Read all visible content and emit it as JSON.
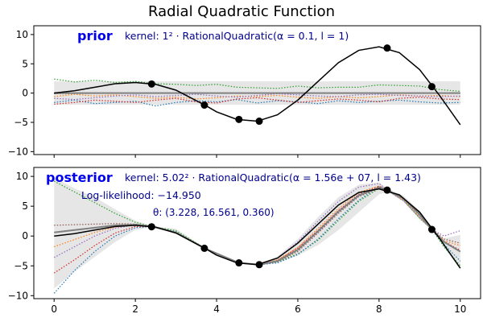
{
  "figure_title": "Radial Quadratic Function",
  "chart_data": [
    {
      "type": "line",
      "panel_label": "prior",
      "panel_label_color": "#0000ee",
      "kernel_label": "kernel: 1² · RationalQuadratic(α = 0.1, l = 1)",
      "text_color": "#00008b",
      "xlim": [
        -0.5,
        10.5
      ],
      "ylim": [
        -10.5,
        11.5
      ],
      "xticks": [
        0,
        2,
        4,
        6,
        8,
        10
      ],
      "yticks": [
        -10,
        -5,
        0,
        5,
        10
      ],
      "show_xtick_labels": false,
      "grid": false,
      "band": {
        "color": "#e6e6e6",
        "x": [
          0,
          10
        ],
        "lower": [
          -2,
          -2
        ],
        "upper": [
          2,
          2
        ]
      },
      "mean": {
        "color": "#808080",
        "x": [
          0,
          10
        ],
        "y": [
          0,
          0
        ]
      },
      "true_function": {
        "color": "#000000",
        "x": [
          0,
          0.5,
          1,
          1.5,
          2,
          2.5,
          3,
          3.5,
          3.7,
          4,
          4.5,
          5,
          5.5,
          6,
          6.5,
          7,
          7.5,
          8,
          8.5,
          9,
          9.5,
          10
        ],
        "y": [
          0,
          0.4,
          1.0,
          1.6,
          1.8,
          1.5,
          0.5,
          -1.3,
          -2.0,
          -3.2,
          -4.5,
          -4.8,
          -3.7,
          -1.2,
          2.0,
          5.2,
          7.3,
          7.9,
          6.9,
          4.0,
          -0.5,
          -5.4
        ]
      },
      "samples": [
        {
          "color": "#2ca02c",
          "x": [
            0,
            0.5,
            1,
            1.5,
            2,
            2.5,
            3,
            3.5,
            4,
            4.5,
            5,
            5.5,
            6,
            6.5,
            7,
            7.5,
            8,
            8.5,
            9,
            9.5,
            10
          ],
          "y": [
            2.4,
            1.9,
            2.2,
            1.8,
            2.0,
            1.6,
            1.5,
            1.3,
            1.5,
            1.0,
            0.9,
            0.8,
            1.2,
            0.9,
            1.0,
            1.0,
            1.4,
            1.3,
            1.2,
            0.6,
            0.3
          ]
        },
        {
          "color": "#ff7f0e",
          "x": [
            0,
            0.5,
            1,
            1.5,
            2,
            2.5,
            3,
            3.5,
            4,
            4.5,
            5,
            5.5,
            6,
            6.5,
            7,
            7.5,
            8,
            8.5,
            9,
            9.5,
            10
          ],
          "y": [
            -0.6,
            -0.2,
            -0.5,
            -0.3,
            -0.6,
            -0.9,
            -0.7,
            -1.0,
            -0.8,
            -0.5,
            -0.6,
            -0.4,
            -0.7,
            -0.9,
            -0.6,
            -0.8,
            -0.6,
            -0.3,
            -0.5,
            -0.4,
            -0.6
          ]
        },
        {
          "color": "#1f77b4",
          "x": [
            0,
            0.5,
            1,
            1.5,
            2,
            2.5,
            3,
            3.5,
            4,
            4.5,
            5,
            5.5,
            6,
            6.5,
            7,
            7.5,
            8,
            8.5,
            9,
            9.5,
            10
          ],
          "y": [
            -1.6,
            -1.2,
            -1.8,
            -1.6,
            -1.4,
            -2.2,
            -1.6,
            -1.3,
            -1.5,
            -1.1,
            -1.7,
            -1.3,
            -1.5,
            -1.8,
            -1.3,
            -1.6,
            -1.4,
            -1.2,
            -1.5,
            -1.7,
            -1.6
          ]
        },
        {
          "color": "#d62728",
          "x": [
            0,
            0.5,
            1,
            1.5,
            2,
            2.5,
            3,
            3.5,
            4,
            4.5,
            5,
            5.5,
            6,
            6.5,
            7,
            7.5,
            8,
            8.5,
            9,
            9.5,
            10
          ],
          "y": [
            -1.9,
            -1.6,
            -1.2,
            -1.4,
            -1.6,
            -1.2,
            -0.9,
            -1.5,
            -1.7,
            -1.0,
            -0.8,
            -1.2,
            -1.6,
            -1.3,
            -1.0,
            -1.2,
            -1.5,
            -0.9,
            -0.7,
            -1.0,
            -1.1
          ]
        },
        {
          "color": "#9467bd",
          "x": [
            0,
            0.5,
            1,
            1.5,
            2,
            2.5,
            3,
            3.5,
            4,
            4.5,
            5,
            5.5,
            6,
            6.5,
            7,
            7.5,
            8,
            8.5,
            9,
            9.5,
            10
          ],
          "y": [
            -0.9,
            -1.1,
            -0.8,
            -0.5,
            -0.3,
            -0.6,
            -0.4,
            -0.2,
            -0.5,
            -0.7,
            -0.4,
            -0.1,
            -0.3,
            -0.5,
            -0.6,
            -0.3,
            -0.2,
            -0.4,
            -0.5,
            -0.6,
            -0.5
          ]
        },
        {
          "color": "#8c564b",
          "x": [
            0,
            1,
            2,
            3,
            4,
            5,
            6,
            7,
            8,
            9,
            10
          ],
          "y": [
            -0.1,
            -0.05,
            0.0,
            0.05,
            0.0,
            -0.05,
            0.05,
            0.0,
            -0.02,
            0.02,
            0.0
          ]
        }
      ],
      "observations": {
        "x": [
          2.4,
          3.7,
          4.55,
          5.05,
          8.2,
          9.3
        ],
        "y": [
          1.55,
          -2.05,
          -4.5,
          -4.8,
          7.7,
          1.1
        ],
        "color": "#000000"
      }
    },
    {
      "type": "line",
      "panel_label": "posterior",
      "panel_label_color": "#0000ee",
      "kernel_label": "kernel: 5.02² · RationalQuadratic(α = 1.56e + 07, l = 1.43)",
      "loglik_label": "Log-likelihood: −14.950",
      "theta_label": "θ: (3.228, 16.561, 0.360)",
      "text_color": "#00008b",
      "xlim": [
        -0.5,
        10.5
      ],
      "ylim": [
        -10.5,
        11.5
      ],
      "xticks": [
        0,
        2,
        4,
        6,
        8,
        10
      ],
      "yticks": [
        -10,
        -5,
        0,
        5,
        10
      ],
      "show_xtick_labels": true,
      "grid": false,
      "band": {
        "color": "#e6e6e6",
        "x": [
          0,
          0.5,
          1,
          1.5,
          2,
          2.4,
          3,
          3.7,
          4.55,
          5.05,
          5.5,
          6,
          6.5,
          7,
          7.5,
          8,
          8.2,
          8.6,
          9,
          9.3,
          9.6,
          10
        ],
        "lower": [
          -8.8,
          -6.0,
          -3.5,
          -1.0,
          1.0,
          1.5,
          0.7,
          -2.2,
          -4.6,
          -4.9,
          -4.5,
          -3.3,
          -1.5,
          1.0,
          4.0,
          7.0,
          7.4,
          5.8,
          2.8,
          1.0,
          -2.0,
          -5.5
        ],
        "upper": [
          9.8,
          8.0,
          6.5,
          4.5,
          2.6,
          1.7,
          1.2,
          -1.9,
          -4.4,
          -4.7,
          -3.4,
          -0.5,
          3.2,
          6.5,
          8.6,
          9.0,
          8.0,
          6.8,
          4.2,
          1.3,
          -0.4,
          0.2
        ]
      },
      "mean": {
        "color": "#808080",
        "x": [
          0,
          0.5,
          1,
          1.5,
          2,
          2.4,
          3,
          3.7,
          4.55,
          5.05,
          5.5,
          6,
          6.5,
          7,
          7.5,
          8,
          8.2,
          8.6,
          9,
          9.3,
          9.6,
          10
        ],
        "y": [
          0.6,
          1.0,
          1.4,
          1.8,
          1.9,
          1.6,
          0.6,
          -2.05,
          -4.5,
          -4.8,
          -4.2,
          -2.3,
          0.8,
          4.1,
          6.8,
          8.1,
          7.7,
          6.3,
          3.6,
          1.1,
          -1.0,
          -2.6
        ]
      },
      "true_function": {
        "color": "#000000",
        "x": [
          0,
          0.5,
          1,
          1.5,
          2,
          2.5,
          3,
          3.5,
          3.7,
          4,
          4.5,
          5,
          5.5,
          6,
          6.5,
          7,
          7.5,
          8,
          8.5,
          9,
          9.5,
          10
        ],
        "y": [
          0,
          0.4,
          1.0,
          1.6,
          1.8,
          1.5,
          0.5,
          -1.3,
          -2.0,
          -3.2,
          -4.5,
          -4.8,
          -3.7,
          -1.2,
          2.0,
          5.2,
          7.3,
          7.9,
          6.9,
          4.0,
          -0.5,
          -5.4
        ]
      },
      "samples": [
        {
          "color": "#2ca02c",
          "x": [
            0,
            0.5,
            1,
            1.5,
            2,
            2.4,
            3,
            3.7,
            4.55,
            5.05,
            5.5,
            6,
            6.5,
            7,
            7.5,
            8,
            8.2,
            8.6,
            9,
            9.3,
            9.6,
            10
          ],
          "y": [
            9.2,
            7.4,
            5.6,
            3.8,
            2.3,
            1.6,
            0.9,
            -2.0,
            -4.5,
            -4.8,
            -4.3,
            -3.0,
            -0.7,
            2.6,
            5.8,
            8.0,
            7.7,
            6.0,
            3.0,
            1.1,
            -1.8,
            -5.0
          ]
        },
        {
          "color": "#ff7f0e",
          "x": [
            0,
            0.5,
            1,
            1.5,
            2,
            2.4,
            3,
            3.7,
            4.55,
            5.05,
            5.5,
            6,
            6.5,
            7,
            7.5,
            8,
            8.2,
            8.6,
            9,
            9.3,
            9.6,
            10
          ],
          "y": [
            -1.8,
            -0.6,
            0.6,
            1.5,
            1.9,
            1.6,
            0.6,
            -2.05,
            -4.5,
            -4.8,
            -4.0,
            -1.9,
            1.3,
            4.6,
            7.3,
            8.4,
            7.7,
            6.1,
            3.3,
            1.1,
            -0.8,
            -1.6
          ]
        },
        {
          "color": "#1f77b4",
          "x": [
            0,
            0.5,
            1,
            1.5,
            2,
            2.4,
            3,
            3.7,
            4.55,
            5.05,
            5.5,
            6,
            6.5,
            7,
            7.5,
            8,
            8.2,
            8.6,
            9,
            9.3,
            9.6,
            10
          ],
          "y": [
            -9.6,
            -5.8,
            -2.6,
            0.0,
            1.4,
            1.6,
            0.7,
            -2.1,
            -4.5,
            -4.8,
            -4.5,
            -3.1,
            -0.5,
            2.9,
            6.0,
            8.3,
            7.7,
            6.4,
            3.9,
            1.1,
            -1.4,
            -4.2
          ]
        },
        {
          "color": "#d62728",
          "x": [
            0,
            0.5,
            1,
            1.5,
            2,
            2.4,
            3,
            3.7,
            4.55,
            5.05,
            5.5,
            6,
            6.5,
            7,
            7.5,
            8,
            8.2,
            8.6,
            9,
            9.3,
            9.6,
            10
          ],
          "y": [
            -6.2,
            -4.0,
            -1.6,
            0.5,
            1.6,
            1.6,
            0.5,
            -2.05,
            -4.5,
            -4.8,
            -4.1,
            -2.0,
            1.0,
            4.3,
            7.0,
            8.3,
            7.7,
            6.2,
            3.5,
            1.1,
            -0.9,
            -2.4
          ]
        },
        {
          "color": "#9467bd",
          "x": [
            0,
            0.5,
            1,
            1.5,
            2,
            2.4,
            3,
            3.7,
            4.55,
            5.05,
            5.5,
            6,
            6.5,
            7,
            7.5,
            8,
            8.2,
            8.6,
            9,
            9.3,
            9.6,
            10
          ],
          "y": [
            -3.6,
            -1.8,
            0.0,
            1.3,
            1.9,
            1.6,
            0.6,
            -2.05,
            -4.5,
            -4.8,
            -3.7,
            -1.0,
            2.5,
            5.8,
            8.2,
            8.8,
            7.7,
            5.9,
            3.1,
            1.1,
            0.0,
            0.9
          ]
        },
        {
          "color": "#8c564b",
          "x": [
            0,
            0.5,
            1,
            1.5,
            2,
            2.4,
            3,
            3.7,
            4.55,
            5.05,
            5.5,
            6,
            6.5,
            7,
            7.5,
            8,
            8.2,
            8.6,
            9,
            9.3,
            9.6,
            10
          ],
          "y": [
            1.8,
            1.9,
            2.0,
            2.1,
            2.0,
            1.6,
            0.6,
            -2.05,
            -4.5,
            -4.8,
            -4.3,
            -2.6,
            0.5,
            3.8,
            6.6,
            8.0,
            7.7,
            6.3,
            3.5,
            1.1,
            -0.5,
            -1.2
          ]
        }
      ],
      "observations": {
        "x": [
          2.4,
          3.7,
          4.55,
          5.05,
          8.2,
          9.3
        ],
        "y": [
          1.55,
          -2.05,
          -4.5,
          -4.8,
          7.7,
          1.1
        ],
        "color": "#000000"
      }
    }
  ]
}
